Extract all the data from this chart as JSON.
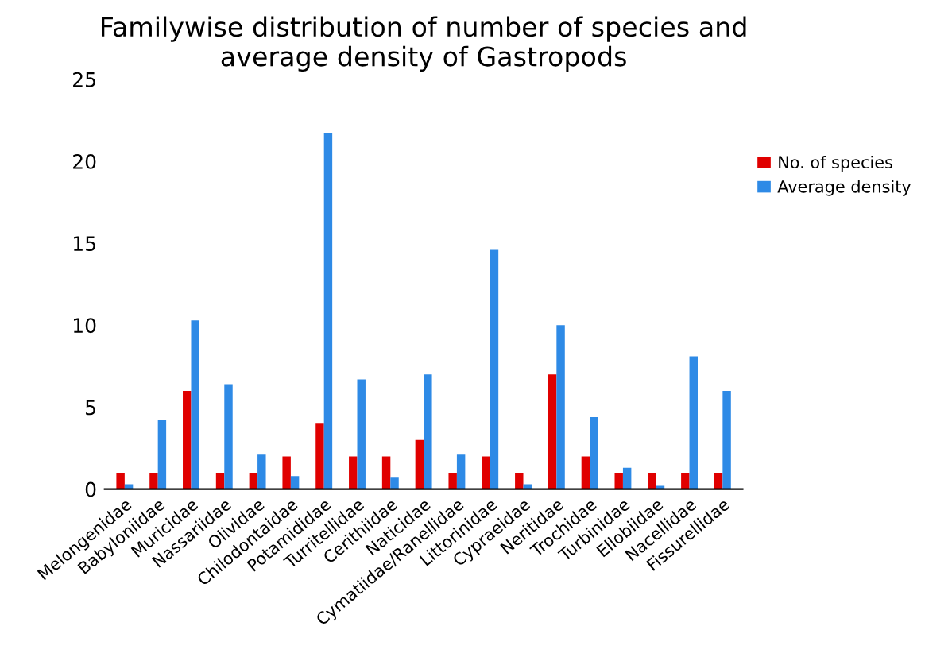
{
  "chart_data": {
    "type": "bar",
    "title": "Familywise distribution of number of species and\naverage density of Gastropods",
    "categories": [
      "Melongenidae",
      "Babyloniidae",
      "Muricidae",
      "Nassariidae",
      "Olividae",
      "Chilodontaidae",
      "Potamididae",
      "Turritellidae",
      "Cerithiidae",
      "Naticidae",
      "Cymatiidae/Ranellidae",
      "Littorinidae",
      "Cypraeidae",
      "Neritidae",
      "Trochidae",
      "Turbinidae",
      "Ellobiidae",
      "Nacellidae",
      "Fissurellidae"
    ],
    "series": [
      {
        "name": "No. of species",
        "color": "#e00000",
        "values": [
          1,
          1,
          6,
          1,
          1,
          2,
          4,
          2,
          2,
          3,
          1,
          2,
          1,
          7,
          2,
          1,
          1,
          1,
          1
        ]
      },
      {
        "name": "Average density",
        "color": "#2e8ae6",
        "values": [
          0.3,
          4.2,
          10.3,
          6.4,
          2.1,
          0.8,
          21.7,
          6.7,
          0.7,
          7.0,
          2.1,
          14.6,
          0.3,
          10.0,
          4.4,
          1.3,
          0.2,
          8.1,
          6.0
        ]
      }
    ],
    "ylim": [
      0,
      25
    ],
    "yticks": [
      0,
      5,
      10,
      15,
      20,
      25
    ],
    "grid": false,
    "legend": "right"
  }
}
